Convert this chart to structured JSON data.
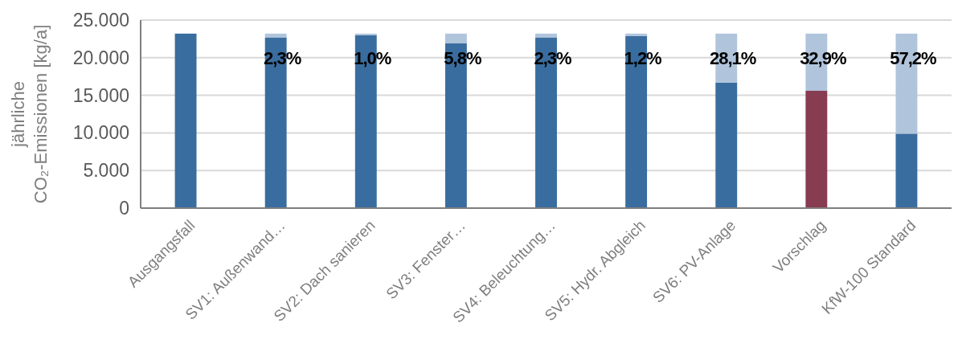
{
  "chart_data": {
    "type": "bar",
    "stacked": true,
    "ylabel": "jährliche\nCO₂-Emissionen [kg/a]",
    "categories": [
      "Ausgangsfall",
      "SV1: Außenwand…",
      "SV2: Dach sanieren",
      "SV3: Fenster…",
      "SV4: Beleuchtung…",
      "SV5: Hydr. Abgleich",
      "SV6: PV-Anlage",
      "Vorschlag",
      "KfW-100 Standard"
    ],
    "series": [
      {
        "color": "#3a6d9f",
        "colors": [
          null,
          null,
          null,
          null,
          null,
          null,
          null,
          "#883c52",
          null
        ],
        "values": [
          23200,
          22700,
          23000,
          21900,
          22700,
          22900,
          16700,
          15600,
          9900
        ]
      },
      {
        "color": "#b0c4dc",
        "values": [
          null,
          500,
          200,
          1300,
          500,
          300,
          6500,
          7600,
          13300
        ]
      }
    ],
    "annotations": [
      {
        "text": "2,3%",
        "x": "SV1: Außenwand…",
        "y": 19900
      },
      {
        "text": "1,0%",
        "x": "SV2: Dach sanieren",
        "y": 19900
      },
      {
        "text": "5,8%",
        "x": "SV3: Fenster…",
        "y": 19900
      },
      {
        "text": "2,3%",
        "x": "SV4: Beleuchtung…",
        "y": 19900
      },
      {
        "text": "1,2%",
        "x": "SV5: Hydr. Abgleich",
        "y": 19900
      },
      {
        "text": "28,1%",
        "x": "SV6: PV-Anlage",
        "y": 19900
      },
      {
        "text": "32,9%",
        "x": "Vorschlag",
        "y": 19900
      },
      {
        "text": "57,2%",
        "x": "KfW-100 Standard",
        "y": 19900
      }
    ],
    "ylim": [
      0,
      25000
    ],
    "yticks": [
      {
        "value": 0,
        "label": "0"
      },
      {
        "value": 5000,
        "label": "5.000"
      },
      {
        "value": 10000,
        "label": "10.000"
      },
      {
        "value": 15000,
        "label": "15.000"
      },
      {
        "value": 20000,
        "label": "20.000"
      },
      {
        "value": 25000,
        "label": "25.000"
      }
    ],
    "grid": "y"
  }
}
